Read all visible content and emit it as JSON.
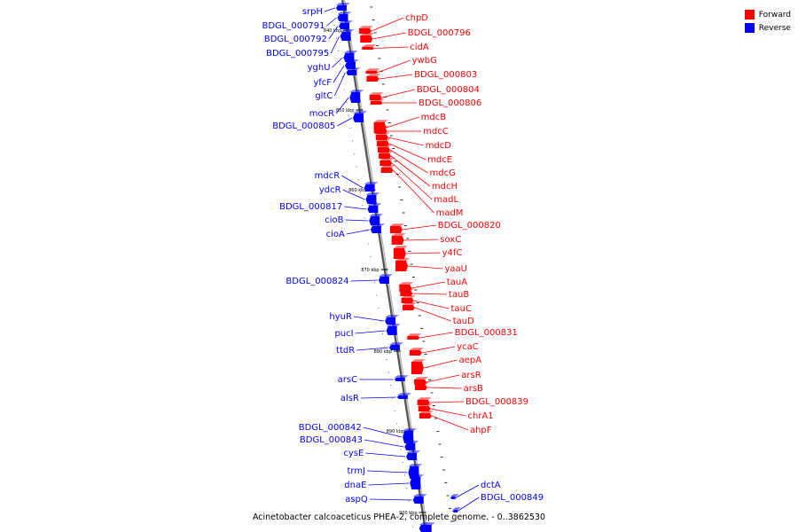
{
  "caption": "Acinetobacter calcoaceticus PHEA-2, complete genome. - 0..3862530",
  "legend": [
    {
      "label": "Forward",
      "color": "#ff0000"
    },
    {
      "label": "Reverse",
      "color": "#0000ff"
    }
  ],
  "axis_labels": [
    "840 kbp",
    "850 kbp",
    "860 kbp",
    "870 kbp",
    "880 kbp",
    "890 kbp",
    "900 kbp"
  ],
  "forward_genes": [
    {
      "label": "chpD"
    },
    {
      "label": "BDGL_000796"
    },
    {
      "label": "cidA"
    },
    {
      "label": "ywbG"
    },
    {
      "label": "BDGL_000803"
    },
    {
      "label": "BDGL_000804"
    },
    {
      "label": "BDGL_000806"
    },
    {
      "label": "mdcB"
    },
    {
      "label": "mdcC"
    },
    {
      "label": "mdcD"
    },
    {
      "label": "mdcE"
    },
    {
      "label": "mdcG"
    },
    {
      "label": "mdcH"
    },
    {
      "label": "madL"
    },
    {
      "label": "madM"
    },
    {
      "label": "BDGL_000820"
    },
    {
      "label": "soxC"
    },
    {
      "label": "y4fC"
    },
    {
      "label": "yaaU"
    },
    {
      "label": "tauA"
    },
    {
      "label": "tauB"
    },
    {
      "label": "tauC"
    },
    {
      "label": "tauD"
    },
    {
      "label": "BDGL_000831"
    },
    {
      "label": "ycaC"
    },
    {
      "label": "aepA"
    },
    {
      "label": "arsR"
    },
    {
      "label": "arsB"
    },
    {
      "label": "BDGL_000839"
    },
    {
      "label": "chrA1"
    },
    {
      "label": "ahpF"
    }
  ],
  "reverse_genes": [
    {
      "label": "srpH"
    },
    {
      "label": "BDGL_000791"
    },
    {
      "label": "BDGL_000792"
    },
    {
      "label": "BDGL_000795"
    },
    {
      "label": "yghU"
    },
    {
      "label": "yfcF"
    },
    {
      "label": "gltC"
    },
    {
      "label": "mocR"
    },
    {
      "label": "BDGL_000805"
    },
    {
      "label": "mdcR"
    },
    {
      "label": "ydcR"
    },
    {
      "label": "BDGL_000817"
    },
    {
      "label": "cioB"
    },
    {
      "label": "cioA"
    },
    {
      "label": "BDGL_000824"
    },
    {
      "label": "hyuR"
    },
    {
      "label": "pucI"
    },
    {
      "label": "ttdR"
    },
    {
      "label": "arsC"
    },
    {
      "label": "alsR"
    },
    {
      "label": "BDGL_000842"
    },
    {
      "label": "BDGL_000843"
    },
    {
      "label": "cysE"
    },
    {
      "label": "trmJ"
    },
    {
      "label": "dnaE"
    },
    {
      "label": "aspQ"
    },
    {
      "label": "dctA"
    },
    {
      "label": "BDGL_000849"
    }
  ]
}
